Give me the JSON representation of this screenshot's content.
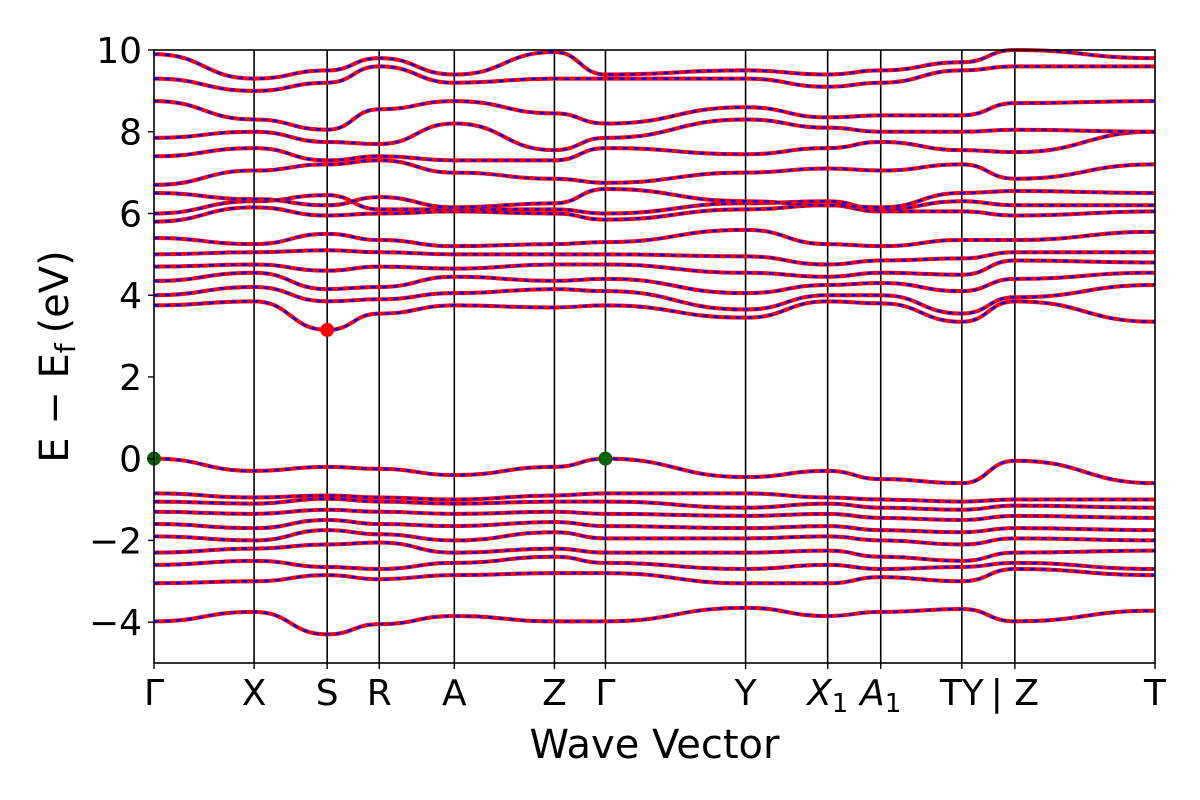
{
  "chart_data": {
    "type": "line",
    "title": "",
    "xlabel": "Wave Vector",
    "ylabel": "E − E",
    "ylabel_subscript": "f",
    "ylabel_unit": "(eV)",
    "ylim": [
      -5,
      10
    ],
    "yticks": [
      -4,
      -2,
      0,
      2,
      4,
      6,
      8,
      10
    ],
    "ytick_labels": [
      "−4",
      "−2",
      "0",
      "2",
      "4",
      "6",
      "8",
      "10"
    ],
    "kpoints": [
      {
        "label": "Γ",
        "sub": "",
        "x": 0.0
      },
      {
        "label": "X",
        "sub": "",
        "x": 1.0
      },
      {
        "label": "S",
        "sub": "",
        "x": 1.73
      },
      {
        "label": "R",
        "sub": "",
        "x": 2.25
      },
      {
        "label": "A",
        "sub": "",
        "x": 3.0
      },
      {
        "label": "Z",
        "sub": "",
        "x": 4.0
      },
      {
        "label": "Γ",
        "sub": "",
        "x": 4.51
      },
      {
        "label": "Y",
        "sub": "",
        "x": 5.91
      },
      {
        "label": "X",
        "sub": "1",
        "x": 6.73
      },
      {
        "label": "A",
        "sub": "1",
        "x": 7.26
      },
      {
        "label": "TY",
        "sub": "",
        "x": 8.07
      },
      {
        "label": "| Z",
        "sub": "",
        "x": 8.6
      },
      {
        "label": "T",
        "sub": "",
        "x": 10.0
      }
    ],
    "xlim": [
      0,
      10.0
    ],
    "series_colors": {
      "bands_a": "#ff0000",
      "bands_b": "#0000ff"
    },
    "marker_color_red": "#ff0000",
    "marker_color_green": "#006400",
    "highlight_points": [
      {
        "x": 1.73,
        "y": 3.15,
        "kind": "cbm",
        "color": "#ff0000"
      },
      {
        "x": 0.0,
        "y": 0.0,
        "kind": "vbm",
        "color": "#006400"
      },
      {
        "x": 4.51,
        "y": 0.0,
        "kind": "vbm",
        "color": "#006400"
      }
    ],
    "bands": [
      {
        "name": "",
        "x": [
          0,
          1.0,
          1.73,
          2.25,
          3.0,
          4.0,
          4.51,
          5.91,
          6.73,
          7.26,
          8.07,
          8.6,
          10.0
        ],
        "y": [
          -3.98,
          -3.75,
          -4.3,
          -4.05,
          -3.85,
          -3.98,
          -3.98,
          -3.65,
          -3.85,
          -3.75,
          -3.68,
          -3.98,
          -3.72
        ]
      },
      {
        "name": "",
        "x": [
          0,
          1.0,
          1.73,
          2.25,
          3.0,
          4.0,
          4.51,
          5.91,
          6.73,
          7.26,
          8.07,
          8.6,
          10.0
        ],
        "y": [
          -3.05,
          -3.0,
          -2.85,
          -2.95,
          -2.85,
          -2.8,
          -2.8,
          -3.05,
          -3.05,
          -2.9,
          -3.0,
          -2.7,
          -2.85
        ]
      },
      {
        "name": "",
        "x": [
          0,
          1.0,
          1.73,
          2.25,
          3.0,
          4.0,
          4.51,
          5.91,
          6.73,
          7.26,
          8.07,
          8.6,
          10.0
        ],
        "y": [
          -2.6,
          -2.5,
          -2.65,
          -2.7,
          -2.55,
          -2.4,
          -2.55,
          -2.7,
          -2.6,
          -2.7,
          -2.65,
          -2.55,
          -2.7
        ]
      },
      {
        "name": "",
        "x": [
          0,
          1.0,
          1.73,
          2.25,
          3.0,
          4.0,
          4.51,
          5.91,
          6.73,
          7.26,
          8.07,
          8.6,
          10.0
        ],
        "y": [
          -2.3,
          -2.2,
          -2.1,
          -2.05,
          -2.3,
          -2.2,
          -2.3,
          -2.3,
          -2.25,
          -2.4,
          -2.5,
          -2.3,
          -2.25
        ]
      },
      {
        "name": "",
        "x": [
          0,
          1.0,
          1.73,
          2.25,
          3.0,
          4.0,
          4.51,
          5.91,
          6.73,
          7.26,
          8.07,
          8.6,
          10.0
        ],
        "y": [
          -1.9,
          -2.0,
          -1.75,
          -1.85,
          -2.0,
          -1.8,
          -1.95,
          -1.95,
          -1.9,
          -2.0,
          -2.1,
          -1.95,
          -2.0
        ]
      },
      {
        "name": "",
        "x": [
          0,
          1.0,
          1.73,
          2.25,
          3.0,
          4.0,
          4.51,
          5.91,
          6.73,
          7.26,
          8.07,
          8.6,
          10.0
        ],
        "y": [
          -1.6,
          -1.7,
          -1.5,
          -1.6,
          -1.65,
          -1.55,
          -1.65,
          -1.7,
          -1.65,
          -1.75,
          -1.8,
          -1.7,
          -1.75
        ]
      },
      {
        "name": "",
        "x": [
          0,
          1.0,
          1.73,
          2.25,
          3.0,
          4.0,
          4.51,
          5.91,
          6.73,
          7.26,
          8.07,
          8.6,
          10.0
        ],
        "y": [
          -1.3,
          -1.35,
          -1.25,
          -1.3,
          -1.35,
          -1.3,
          -1.35,
          -1.4,
          -1.35,
          -1.45,
          -1.5,
          -1.4,
          -1.45
        ]
      },
      {
        "name": "",
        "x": [
          0,
          1.0,
          1.73,
          2.25,
          3.0,
          4.0,
          4.51,
          5.91,
          6.73,
          7.26,
          8.07,
          8.6,
          10.0
        ],
        "y": [
          -1.05,
          -1.1,
          -0.98,
          -1.05,
          -1.1,
          -1.05,
          -1.05,
          -1.2,
          -1.1,
          -1.2,
          -1.25,
          -1.15,
          -1.2
        ]
      },
      {
        "name": "",
        "x": [
          0,
          1.0,
          1.73,
          2.25,
          3.0,
          4.0,
          4.51,
          5.91,
          6.73,
          7.26,
          8.07,
          8.6,
          10.0
        ],
        "y": [
          -0.85,
          -0.95,
          -0.9,
          -0.95,
          -1.0,
          -0.9,
          -0.85,
          -0.85,
          -0.95,
          -1.0,
          -1.05,
          -1.0,
          -1.0
        ]
      },
      {
        "name": "",
        "x": [
          0,
          1.0,
          1.73,
          2.25,
          3.0,
          4.0,
          4.51,
          5.91,
          6.73,
          7.26,
          8.07,
          8.6,
          10.0
        ],
        "y": [
          0.0,
          -0.3,
          -0.2,
          -0.25,
          -0.4,
          -0.2,
          0.0,
          -0.45,
          -0.3,
          -0.5,
          -0.6,
          -0.05,
          -0.6
        ]
      },
      {
        "name": "",
        "x": [
          0,
          1.0,
          1.73,
          2.25,
          3.0,
          4.0,
          4.51,
          5.91,
          6.73,
          7.26,
          8.07,
          8.6,
          10.0
        ],
        "y": [
          3.75,
          3.85,
          3.15,
          3.55,
          3.75,
          3.7,
          3.75,
          3.45,
          3.85,
          3.8,
          3.35,
          3.85,
          3.35
        ]
      },
      {
        "name": "",
        "x": [
          0,
          1.0,
          1.73,
          2.25,
          3.0,
          4.0,
          4.51,
          5.91,
          6.73,
          7.26,
          8.07,
          8.6,
          10.0
        ],
        "y": [
          4.0,
          4.2,
          3.85,
          3.9,
          4.05,
          4.15,
          4.1,
          3.65,
          4.0,
          4.0,
          3.55,
          3.95,
          4.25
        ]
      },
      {
        "name": "",
        "x": [
          0,
          1.0,
          1.73,
          2.25,
          3.0,
          4.0,
          4.51,
          5.91,
          6.73,
          7.26,
          8.07,
          8.6,
          10.0
        ],
        "y": [
          4.35,
          4.55,
          4.15,
          4.2,
          4.45,
          4.35,
          4.4,
          4.05,
          4.25,
          4.3,
          4.1,
          4.4,
          4.55
        ]
      },
      {
        "name": "",
        "x": [
          0,
          1.0,
          1.73,
          2.25,
          3.0,
          4.0,
          4.51,
          5.91,
          6.73,
          7.26,
          8.07,
          8.6,
          10.0
        ],
        "y": [
          4.7,
          4.75,
          4.6,
          4.7,
          4.65,
          4.75,
          4.75,
          4.55,
          4.45,
          4.55,
          4.5,
          4.85,
          4.8
        ]
      },
      {
        "name": "",
        "x": [
          0,
          1.0,
          1.73,
          2.25,
          3.0,
          4.0,
          4.51,
          5.91,
          6.73,
          7.26,
          8.07,
          8.6,
          10.0
        ],
        "y": [
          5.0,
          5.05,
          5.1,
          5.05,
          5.0,
          5.0,
          5.0,
          4.95,
          4.75,
          4.85,
          4.9,
          5.05,
          5.05
        ]
      },
      {
        "name": "",
        "x": [
          0,
          1.0,
          1.73,
          2.25,
          3.0,
          4.0,
          4.51,
          5.91,
          6.73,
          7.26,
          8.07,
          8.6,
          10.0
        ],
        "y": [
          5.4,
          5.25,
          5.5,
          5.35,
          5.2,
          5.25,
          5.3,
          5.6,
          5.25,
          5.2,
          5.35,
          5.35,
          5.55
        ]
      },
      {
        "name": "",
        "x": [
          0,
          1.0,
          1.73,
          2.25,
          3.0,
          4.0,
          4.51,
          5.91,
          6.73,
          7.26,
          8.07,
          8.6,
          10.0
        ],
        "y": [
          5.8,
          6.15,
          5.95,
          6.0,
          6.05,
          6.0,
          5.85,
          6.1,
          6.2,
          6.05,
          6.05,
          5.95,
          6.05
        ]
      },
      {
        "name": "",
        "x": [
          0,
          1.0,
          1.73,
          2.25,
          3.0,
          4.0,
          4.51,
          5.91,
          6.73,
          7.26,
          8.07,
          8.6,
          10.0
        ],
        "y": [
          6.0,
          6.3,
          6.45,
          6.1,
          6.1,
          6.1,
          6.0,
          6.25,
          6.3,
          6.1,
          6.3,
          6.2,
          6.2
        ]
      },
      {
        "name": "",
        "x": [
          0,
          1.0,
          1.73,
          2.25,
          3.0,
          4.0,
          4.51,
          5.91,
          6.73,
          7.26,
          8.07,
          8.6,
          10.0
        ],
        "y": [
          6.5,
          6.35,
          6.2,
          6.4,
          6.15,
          6.25,
          6.6,
          6.3,
          6.2,
          6.15,
          6.5,
          6.55,
          6.5
        ]
      },
      {
        "name": "",
        "x": [
          0,
          1.0,
          1.73,
          2.25,
          3.0,
          4.0,
          4.51,
          5.91,
          6.73,
          7.26,
          8.07,
          8.6,
          10.0
        ],
        "y": [
          6.7,
          7.05,
          7.2,
          7.3,
          7.0,
          6.85,
          6.75,
          7.0,
          7.1,
          7.05,
          7.2,
          6.85,
          7.2
        ]
      },
      {
        "name": "",
        "x": [
          0,
          1.0,
          1.73,
          2.25,
          3.0,
          4.0,
          4.51,
          5.91,
          6.73,
          7.26,
          8.07,
          8.6,
          10.0
        ],
        "y": [
          7.4,
          7.6,
          7.3,
          7.4,
          7.3,
          7.3,
          7.6,
          7.45,
          7.6,
          7.75,
          7.55,
          7.5,
          8.0
        ]
      },
      {
        "name": "",
        "x": [
          0,
          1.0,
          1.73,
          2.25,
          3.0,
          4.0,
          4.51,
          5.91,
          6.73,
          7.26,
          8.07,
          8.6,
          10.0
        ],
        "y": [
          7.85,
          8.0,
          7.75,
          7.7,
          8.2,
          7.55,
          7.85,
          8.3,
          8.1,
          8.0,
          8.0,
          8.05,
          8.0
        ]
      },
      {
        "name": "",
        "x": [
          0,
          1.0,
          1.73,
          2.25,
          3.0,
          4.0,
          4.51,
          5.91,
          6.73,
          7.26,
          8.07,
          8.6,
          10.0
        ],
        "y": [
          8.75,
          8.3,
          8.05,
          8.55,
          8.75,
          8.45,
          8.2,
          8.6,
          8.35,
          8.4,
          8.4,
          8.7,
          8.75
        ]
      },
      {
        "name": "",
        "x": [
          0,
          1.0,
          1.73,
          2.25,
          3.0,
          4.0,
          4.51,
          5.91,
          6.73,
          7.26,
          8.07,
          8.6,
          10.0
        ],
        "y": [
          9.3,
          9.0,
          9.2,
          9.6,
          9.2,
          9.3,
          9.3,
          9.3,
          9.1,
          9.2,
          9.5,
          9.6,
          9.6
        ]
      },
      {
        "name": "",
        "x": [
          0,
          1.0,
          1.73,
          2.25,
          3.0,
          4.0,
          4.51,
          5.91,
          6.73,
          7.26,
          8.07,
          8.6,
          10.0
        ],
        "y": [
          9.9,
          9.3,
          9.5,
          9.8,
          9.4,
          9.95,
          9.4,
          9.5,
          9.4,
          9.5,
          9.7,
          10.0,
          9.8
        ]
      }
    ]
  }
}
